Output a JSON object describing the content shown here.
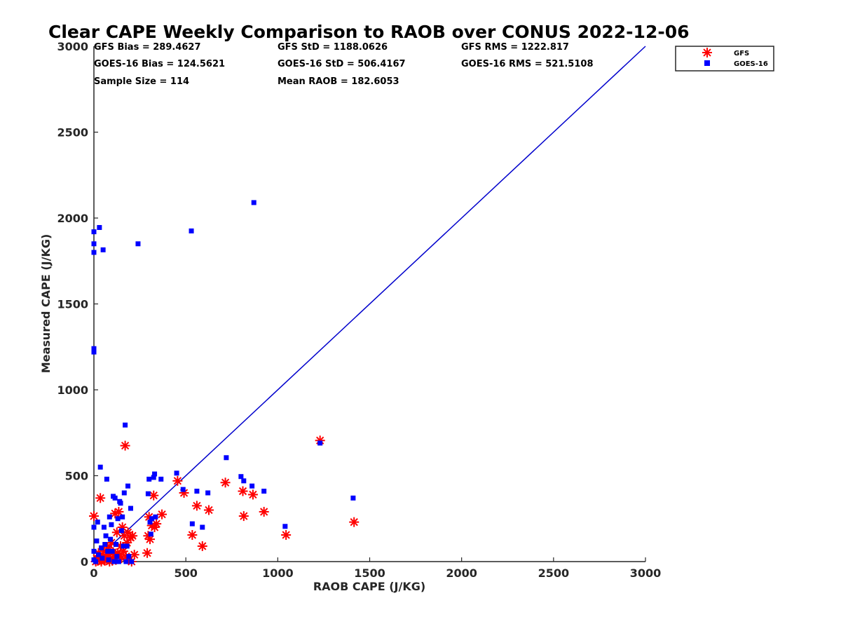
{
  "chart_data": {
    "type": "scatter",
    "title": "Clear CAPE Weekly Comparison to RAOB over CONUS 2022-12-06",
    "xlabel": "RAOB CAPE (J/KG)",
    "ylabel": "Measured CAPE (J/KG)",
    "xlim": [
      0,
      3000
    ],
    "ylim": [
      0,
      3000
    ],
    "xticks": [
      "0",
      "500",
      "1000",
      "1500",
      "2000",
      "2500",
      "3000"
    ],
    "yticks": [
      "0",
      "500",
      "1000",
      "1500",
      "2000",
      "2500",
      "3000"
    ],
    "grid": false,
    "legend_position": "top-right",
    "stats": [
      "GFS Bias = 289.4627",
      "GFS StD = 1188.0626",
      "GFS RMS = 1222.817",
      "GOES-16 Bias = 124.5621",
      "GOES-16 StD = 506.4167",
      "GOES-16 RMS = 521.5108",
      "Sample Size = 114",
      "Mean RAOB = 182.6053"
    ],
    "reference_line": {
      "x": [
        0,
        3000
      ],
      "y": [
        0,
        3000
      ],
      "color": "#0000cc"
    },
    "series": [
      {
        "name": "GFS",
        "marker": "asterisk",
        "color": "#ff0000",
        "points": [
          [
            0,
            265
          ],
          [
            10,
            0
          ],
          [
            15,
            20
          ],
          [
            20,
            5
          ],
          [
            25,
            50
          ],
          [
            30,
            10
          ],
          [
            35,
            370
          ],
          [
            40,
            0
          ],
          [
            45,
            25
          ],
          [
            50,
            15
          ],
          [
            55,
            60
          ],
          [
            60,
            5
          ],
          [
            65,
            30
          ],
          [
            70,
            10
          ],
          [
            75,
            80
          ],
          [
            80,
            40
          ],
          [
            85,
            0
          ],
          [
            90,
            20
          ],
          [
            95,
            110
          ],
          [
            100,
            5
          ],
          [
            105,
            55
          ],
          [
            110,
            30
          ],
          [
            115,
            280
          ],
          [
            120,
            10
          ],
          [
            125,
            170
          ],
          [
            130,
            50
          ],
          [
            135,
            290
          ],
          [
            140,
            40
          ],
          [
            145,
            90
          ],
          [
            150,
            20
          ],
          [
            155,
            200
          ],
          [
            160,
            60
          ],
          [
            165,
            150
          ],
          [
            170,
            675
          ],
          [
            175,
            30
          ],
          [
            180,
            110
          ],
          [
            185,
            170
          ],
          [
            190,
            10
          ],
          [
            200,
            140
          ],
          [
            205,
            0
          ],
          [
            210,
            150
          ],
          [
            220,
            40
          ],
          [
            290,
            50
          ],
          [
            295,
            150
          ],
          [
            300,
            260
          ],
          [
            305,
            130
          ],
          [
            315,
            210
          ],
          [
            325,
            385
          ],
          [
            330,
            200
          ],
          [
            340,
            220
          ],
          [
            370,
            275
          ],
          [
            455,
            470
          ],
          [
            490,
            400
          ],
          [
            535,
            155
          ],
          [
            560,
            325
          ],
          [
            590,
            90
          ],
          [
            625,
            300
          ],
          [
            715,
            460
          ],
          [
            810,
            410
          ],
          [
            815,
            265
          ],
          [
            865,
            390
          ],
          [
            925,
            290
          ],
          [
            1045,
            155
          ],
          [
            1230,
            705
          ],
          [
            1415,
            230
          ]
        ]
      },
      {
        "name": "GOES-16",
        "marker": "square",
        "color": "#0000ff",
        "points": [
          [
            0,
            1920
          ],
          [
            0,
            1850
          ],
          [
            0,
            1800
          ],
          [
            0,
            1240
          ],
          [
            0,
            1220
          ],
          [
            0,
            200
          ],
          [
            0,
            60
          ],
          [
            0,
            10
          ],
          [
            10,
            0
          ],
          [
            15,
            120
          ],
          [
            20,
            230
          ],
          [
            25,
            40
          ],
          [
            30,
            1945
          ],
          [
            35,
            550
          ],
          [
            40,
            80
          ],
          [
            45,
            20
          ],
          [
            50,
            1815
          ],
          [
            55,
            200
          ],
          [
            60,
            100
          ],
          [
            65,
            150
          ],
          [
            70,
            480
          ],
          [
            75,
            60
          ],
          [
            80,
            10
          ],
          [
            85,
            260
          ],
          [
            90,
            130
          ],
          [
            95,
            215
          ],
          [
            100,
            60
          ],
          [
            105,
            380
          ],
          [
            110,
            0
          ],
          [
            115,
            370
          ],
          [
            120,
            100
          ],
          [
            125,
            30
          ],
          [
            130,
            250
          ],
          [
            135,
            0
          ],
          [
            140,
            350
          ],
          [
            145,
            340
          ],
          [
            150,
            180
          ],
          [
            155,
            260
          ],
          [
            160,
            90
          ],
          [
            165,
            400
          ],
          [
            170,
            795
          ],
          [
            175,
            0
          ],
          [
            180,
            90
          ],
          [
            185,
            440
          ],
          [
            190,
            30
          ],
          [
            200,
            310
          ],
          [
            205,
            0
          ],
          [
            240,
            1850
          ],
          [
            295,
            395
          ],
          [
            300,
            480
          ],
          [
            305,
            230
          ],
          [
            310,
            160
          ],
          [
            315,
            250
          ],
          [
            325,
            490
          ],
          [
            330,
            510
          ],
          [
            335,
            260
          ],
          [
            365,
            480
          ],
          [
            450,
            515
          ],
          [
            485,
            420
          ],
          [
            530,
            1925
          ],
          [
            535,
            220
          ],
          [
            560,
            410
          ],
          [
            590,
            200
          ],
          [
            620,
            400
          ],
          [
            720,
            605
          ],
          [
            800,
            495
          ],
          [
            815,
            470
          ],
          [
            860,
            440
          ],
          [
            870,
            2090
          ],
          [
            925,
            410
          ],
          [
            1040,
            205
          ],
          [
            1230,
            690
          ],
          [
            1410,
            370
          ]
        ]
      }
    ]
  }
}
